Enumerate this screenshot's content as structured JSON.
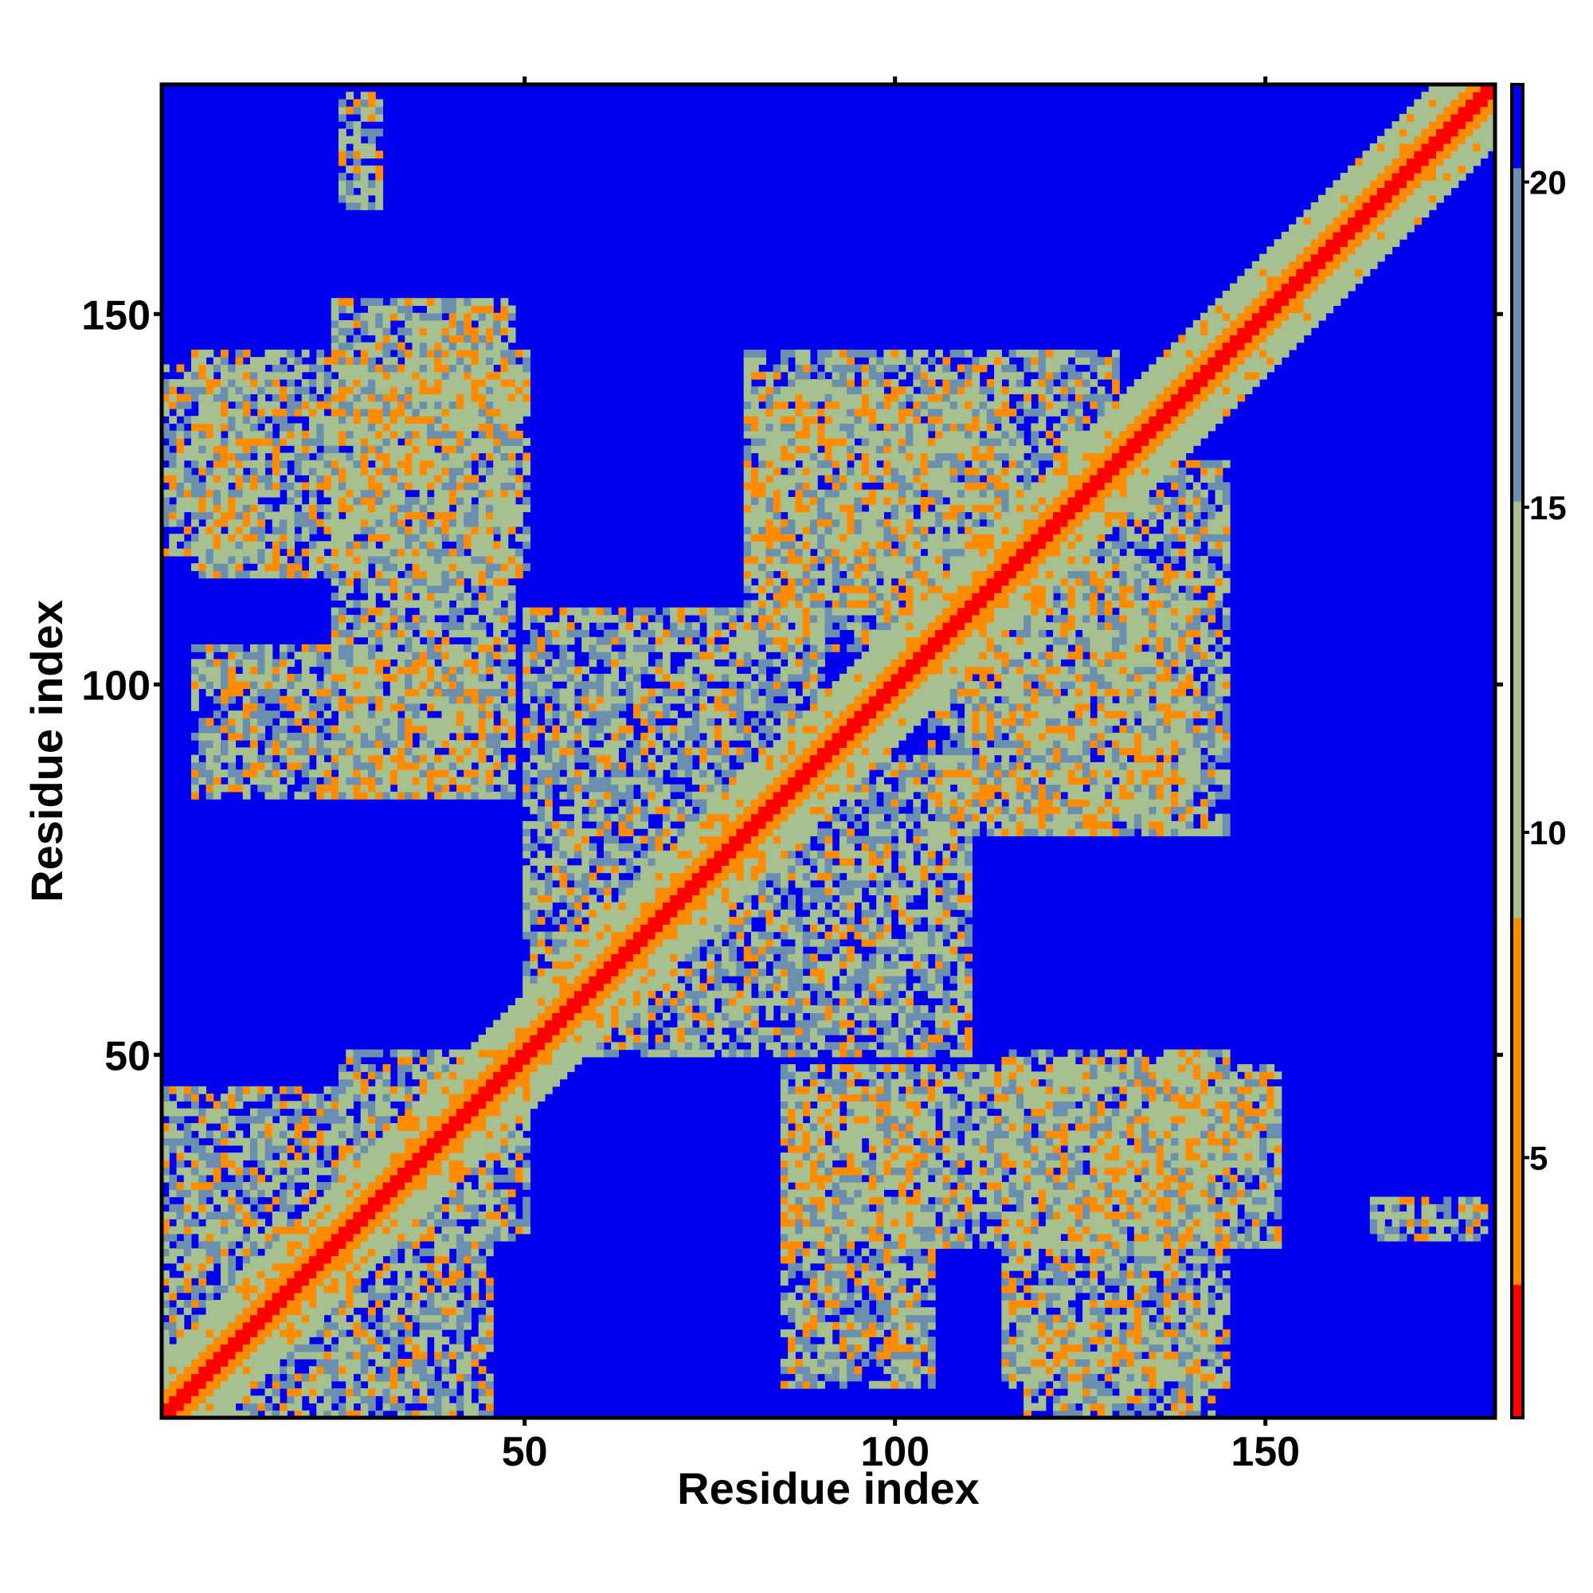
{
  "chart_data": {
    "type": "heatmap",
    "title": "",
    "xlabel": "Residue index",
    "ylabel": "Residue index",
    "xlim": [
      1,
      181
    ],
    "ylim": [
      1,
      181
    ],
    "x_ticks": [
      50,
      100,
      150
    ],
    "y_ticks": [
      50,
      100,
      150
    ],
    "n_residues": 181,
    "colorbar": {
      "ticks": [
        5,
        10,
        15,
        20
      ],
      "range": [
        1,
        21.5
      ],
      "colors": [
        "#ff0000",
        "#ff8c00",
        "#a7c08f",
        "#6b8fae",
        "#0000ee"
      ]
    },
    "values_description_free": true,
    "contact_blocks": [
      {
        "x": [
          1,
          181
        ],
        "y": [
          1,
          181
        ],
        "kind": "diagonal"
      },
      {
        "x": [
          1,
          14
        ],
        "y": [
          118,
          143
        ],
        "kind": "region"
      },
      {
        "x": [
          24,
          48
        ],
        "y": [
          85,
          152
        ],
        "kind": "region"
      },
      {
        "x": [
          1,
          25
        ],
        "y": [
          1,
          45
        ],
        "kind": "region"
      },
      {
        "x": [
          25,
          50
        ],
        "y": [
          30,
          50
        ],
        "kind": "region"
      },
      {
        "x": [
          50,
          90
        ],
        "y": [
          55,
          110
        ],
        "kind": "region"
      },
      {
        "x": [
          80,
          115
        ],
        "y": [
          110,
          140
        ],
        "kind": "region"
      },
      {
        "x": [
          85,
          105
        ],
        "y": [
          5,
          45
        ],
        "kind": "region"
      },
      {
        "x": [
          105,
          145
        ],
        "y": [
          80,
          130
        ],
        "kind": "region"
      },
      {
        "x": [
          115,
          145
        ],
        "y": [
          5,
          50
        ],
        "kind": "region"
      },
      {
        "x": [
          135,
          150
        ],
        "y": [
          35,
          48
        ],
        "kind": "region"
      },
      {
        "x": [
          165,
          180
        ],
        "y": [
          25,
          30
        ],
        "kind": "region"
      }
    ]
  }
}
